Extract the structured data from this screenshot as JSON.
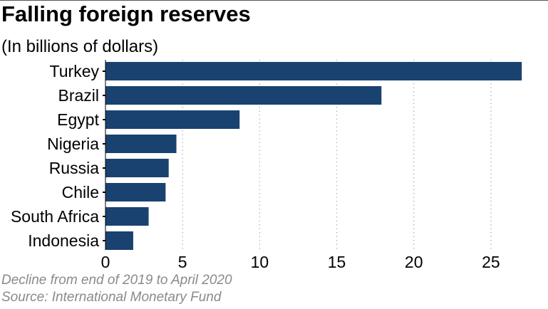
{
  "chart_data": {
    "type": "bar",
    "orientation": "horizontal",
    "title": "Falling foreign reserves",
    "subtitle": "(In billions of dollars)",
    "categories": [
      "Turkey",
      "Brazil",
      "Egypt",
      "Nigeria",
      "Russia",
      "Chile",
      "South Africa",
      "Indonesia"
    ],
    "values": [
      27.0,
      17.9,
      8.7,
      4.6,
      4.1,
      3.9,
      2.8,
      1.8
    ],
    "xlim": [
      0,
      27.5
    ],
    "xticks": [
      0,
      5,
      10,
      15,
      20,
      25
    ],
    "xlabel": "",
    "ylabel": "",
    "grid": "vertical-dotted",
    "bar_color": "#1a4270",
    "gridline_color": "#b5b5b5",
    "notes": [
      "Decline from end of 2019 to April 2020",
      "Source: International Monetary Fund"
    ]
  }
}
